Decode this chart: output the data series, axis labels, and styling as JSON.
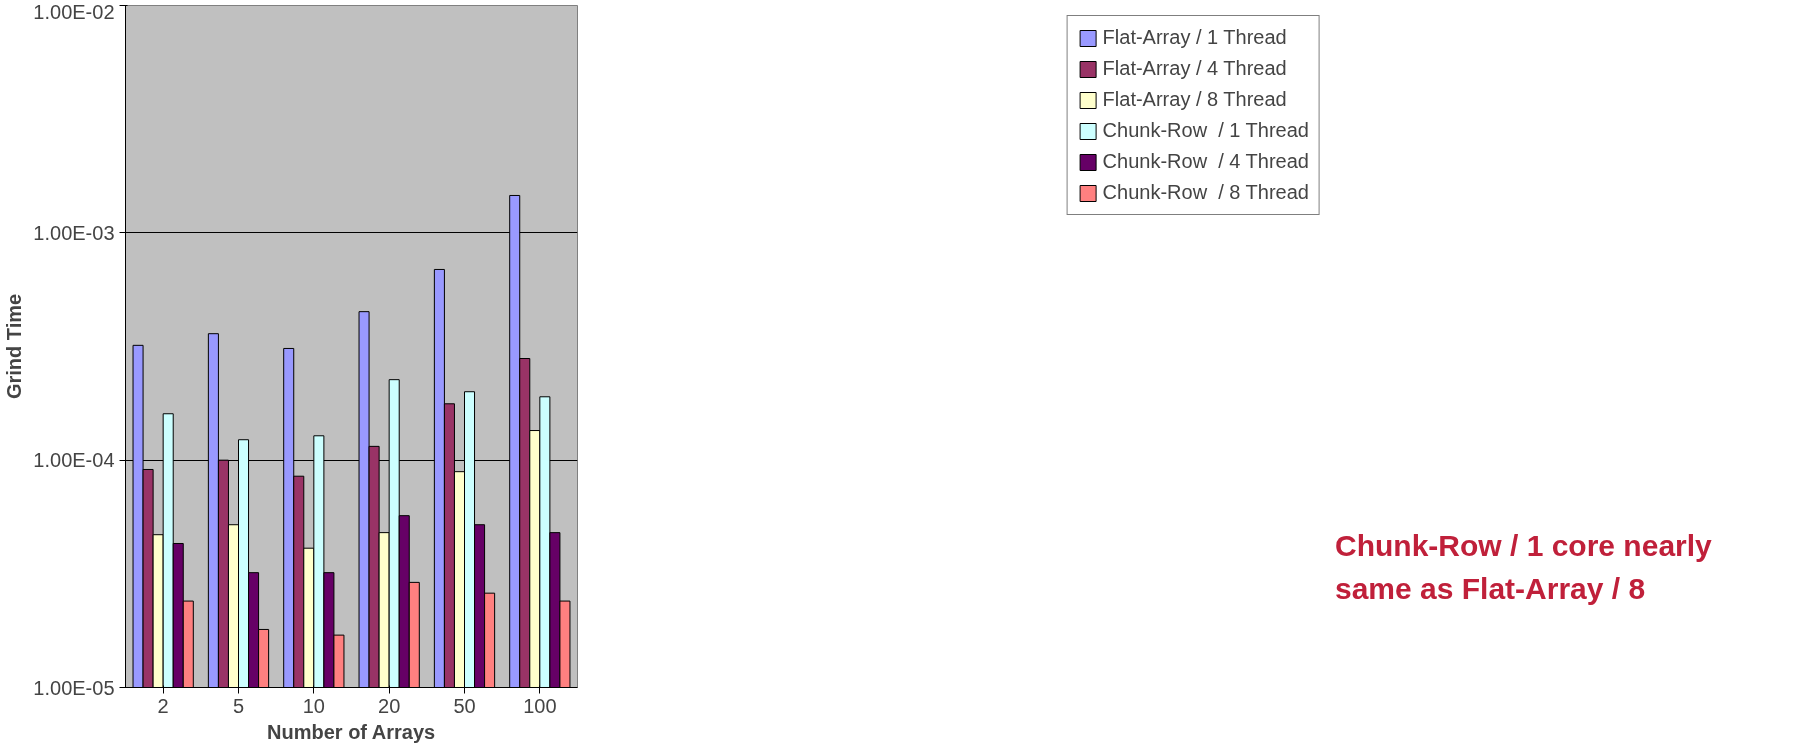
{
  "chart_data": {
    "type": "bar",
    "xlabel": "Number of Arrays",
    "ylabel": "Grind Time",
    "categories": [
      "2",
      "5",
      "10",
      "20",
      "50",
      "100"
    ],
    "log": "y",
    "ylim": [
      1e-05,
      0.01
    ],
    "yticks": [
      {
        "value": 1e-05,
        "label": "1.00E-05"
      },
      {
        "value": 0.0001,
        "label": "1.00E-04"
      },
      {
        "value": 0.001,
        "label": "1.00E-03"
      },
      {
        "value": 0.01,
        "label": "1.00E-02"
      }
    ],
    "grid": "y",
    "legend": "right",
    "series": [
      {
        "name": "Flat-Array / 1 Thread",
        "color": "#9999ff",
        "values": [
          0.00032,
          0.00036,
          0.00031,
          0.00045,
          0.00069,
          0.00146
        ]
      },
      {
        "name": "Flat-Array / 4 Thread",
        "color": "#993366",
        "values": [
          9.1e-05,
          0.0001,
          8.5e-05,
          0.000115,
          0.000177,
          0.00028
        ]
      },
      {
        "name": "Flat-Array / 8 Thread",
        "color": "#ffffcc",
        "values": [
          4.7e-05,
          5.2e-05,
          4.1e-05,
          4.8e-05,
          8.9e-05,
          0.000135
        ]
      },
      {
        "name": "Chunk-Row  / 1 Thread",
        "color": "#ccffff",
        "values": [
          0.00016,
          0.000123,
          0.000128,
          0.000226,
          0.0002,
          0.00019
        ]
      },
      {
        "name": "Chunk-Row  / 4 Thread",
        "color": "#660066",
        "values": [
          4.3e-05,
          3.2e-05,
          3.2e-05,
          5.7e-05,
          5.2e-05,
          4.8e-05
        ]
      },
      {
        "name": "Chunk-Row  / 8 Thread",
        "color": "#ff8080",
        "values": [
          2.4e-05,
          1.8e-05,
          1.7e-05,
          2.9e-05,
          2.6e-05,
          2.4e-05
        ]
      }
    ],
    "annotations": [
      "Chunk-Row / 1 core nearly same as Flat-Array / 8"
    ]
  }
}
